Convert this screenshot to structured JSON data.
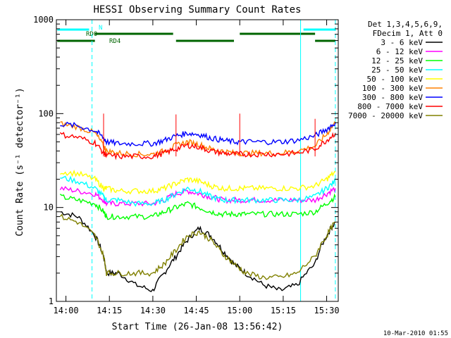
{
  "chart_data": {
    "type": "line",
    "title": "HESSI Observing Summary Count Rates",
    "xlabel": "Start Time (26-Jan-08 13:56:42)",
    "ylabel": "Count Rate (s⁻¹ detector⁻¹)",
    "xlim": [
      "13:56:42",
      "15:34:00"
    ],
    "ylim": [
      1,
      1000
    ],
    "yscale": "log",
    "grid": false,
    "legend_position": "top-right",
    "x_ticks": [
      "14:00",
      "14:15",
      "14:30",
      "14:45",
      "15:00",
      "15:15",
      "15:30"
    ],
    "y_ticks": [
      "1",
      "10",
      "100",
      "1000"
    ],
    "legend_header": [
      "Det 1,3,4,5,6,9,",
      "FDecim 1, Att 0"
    ],
    "timestamp": "10-Mar-2010 01:55",
    "x": [
      "13:58",
      "14:04",
      "14:10",
      "14:13",
      "14:14",
      "14:18",
      "14:24",
      "14:30",
      "14:34",
      "14:38",
      "14:42",
      "14:46",
      "14:50",
      "14:54",
      "14:58",
      "15:02",
      "15:08",
      "15:14",
      "15:20",
      "15:26",
      "15:30",
      "15:33"
    ],
    "series": [
      {
        "name": "3 - 6 keV",
        "color": "#000000",
        "values": [
          9,
          8,
          5,
          3,
          2,
          2,
          1.5,
          1.3,
          2,
          3,
          4.5,
          6,
          5,
          3.5,
          2.5,
          2,
          1.5,
          1.3,
          1.5,
          2.5,
          5,
          7
        ]
      },
      {
        "name": "6 - 12 keV",
        "color": "#ff00ff",
        "values": [
          16,
          15,
          14,
          12,
          11,
          11,
          11,
          11,
          12,
          14,
          15,
          14,
          13,
          12,
          12,
          12,
          12,
          12,
          12,
          12,
          14,
          16
        ]
      },
      {
        "name": "12 - 25 keV",
        "color": "#00ff00",
        "values": [
          13,
          12,
          11,
          9,
          8,
          8,
          8,
          8,
          9,
          10,
          11,
          10,
          9,
          8.5,
          8.5,
          8.5,
          8.5,
          8.5,
          8.5,
          9,
          11,
          13
        ]
      },
      {
        "name": "25 - 50 keV",
        "color": "#00ffff",
        "values": [
          21,
          19,
          16,
          13,
          12,
          12,
          11,
          11,
          12,
          14,
          16,
          15,
          13,
          12,
          12,
          12,
          12,
          12,
          12,
          13,
          16,
          19
        ]
      },
      {
        "name": "50 - 100 keV",
        "color": "#ffff00",
        "values": [
          24,
          23,
          20,
          16,
          16,
          15,
          15,
          15,
          16,
          18,
          20,
          19,
          17,
          16,
          16,
          16,
          16,
          16,
          16,
          17,
          20,
          24
        ]
      },
      {
        "name": "100 - 300 keV",
        "color": "#ff8000",
        "values": [
          78,
          72,
          62,
          45,
          40,
          38,
          37,
          37,
          40,
          46,
          50,
          47,
          42,
          40,
          38,
          38,
          38,
          38,
          40,
          45,
          60,
          80
        ]
      },
      {
        "name": "300 - 800 keV",
        "color": "#0000ff",
        "values": [
          78,
          74,
          66,
          55,
          50,
          48,
          48,
          48,
          52,
          58,
          62,
          60,
          55,
          52,
          50,
          50,
          50,
          50,
          52,
          58,
          68,
          80
        ]
      },
      {
        "name": "800 - 7000 keV",
        "color": "#ff0000",
        "values": [
          60,
          56,
          49,
          38,
          36,
          35,
          35,
          35,
          38,
          42,
          46,
          44,
          40,
          38,
          37,
          37,
          37,
          37,
          38,
          42,
          52,
          62
        ]
      },
      {
        "name": "7000 - 20000 keV",
        "color": "#808000",
        "values": [
          8,
          7,
          5,
          3,
          2,
          2,
          2,
          2,
          2.5,
          3.5,
          5,
          5.5,
          4.5,
          3.2,
          2.5,
          2,
          1.8,
          1.8,
          2,
          3,
          5,
          7
        ]
      }
    ],
    "flare_spikes": [
      {
        "series": "800 - 7000 keV",
        "points": [
          [
            "14:13",
            100
          ],
          [
            "14:38",
            98
          ],
          [
            "15:00",
            100
          ],
          [
            "15:26",
            88
          ]
        ]
      }
    ],
    "vertical_lines": [
      {
        "x": "13:56:42",
        "style": "solid",
        "color": "#00ffff"
      },
      {
        "x": "14:09",
        "style": "dashed",
        "color": "#00ffff"
      },
      {
        "x": "15:21",
        "style": "solid",
        "color": "#00ffff"
      },
      {
        "x": "15:33",
        "style": "dashed",
        "color": "#00ffff"
      }
    ],
    "status_bars": [
      {
        "label": "N",
        "color": "#00ffff",
        "segments": [
          [
            "13:57",
            "14:08"
          ],
          [
            "15:22",
            "15:33"
          ]
        ]
      },
      {
        "label": "RD0",
        "color": "#006400",
        "segments": [
          [
            "14:10",
            "14:37"
          ],
          [
            "15:00",
            "15:26"
          ]
        ]
      },
      {
        "label": "RD4",
        "color": "#006400",
        "segments": [
          [
            "13:57",
            "14:10"
          ],
          [
            "14:38",
            "14:58"
          ],
          [
            "15:26",
            "15:33"
          ]
        ]
      }
    ]
  }
}
